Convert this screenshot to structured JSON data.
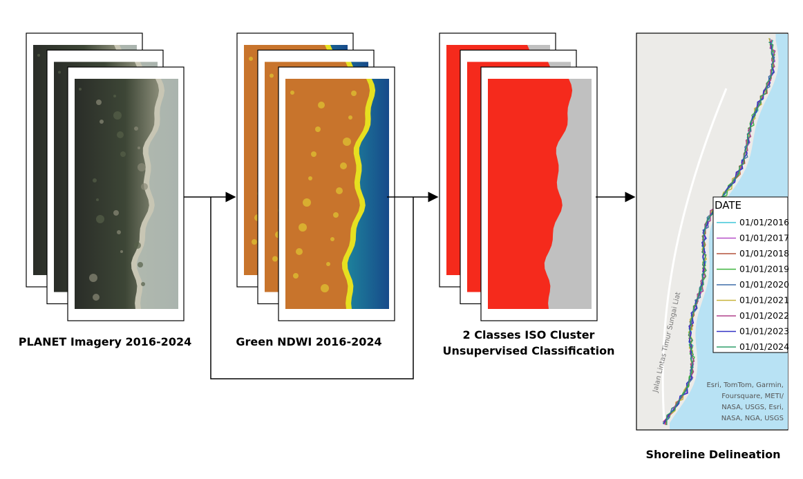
{
  "captions": {
    "planet": "PLANET Imagery 2016-2024",
    "ndwi": "Green NDWI 2016-2024",
    "iso_line1": "2 Classes ISO Cluster",
    "iso_line2": "Unsupervised Classification",
    "shoreline": "Shoreline Delineation"
  },
  "map": {
    "road_label": "Jalan Lintas Timur Sungai Liat",
    "attribution": [
      "Esri, TomTom, Garmin,",
      "Foursquare, METI/",
      "NASA, USGS, Esri,",
      "NASA, NGA, USGS"
    ],
    "legend": {
      "title": "DATE",
      "entries": [
        {
          "label": "01/01/2016",
          "color": "#3fc6d8"
        },
        {
          "label": "01/01/2017",
          "color": "#b54fc8"
        },
        {
          "label": "01/01/2018",
          "color": "#b4503a"
        },
        {
          "label": "01/01/2019",
          "color": "#3cb43c"
        },
        {
          "label": "01/01/2020",
          "color": "#3d6da8"
        },
        {
          "label": "01/01/2021",
          "color": "#c8b43a"
        },
        {
          "label": "01/01/2022",
          "color": "#b0408a"
        },
        {
          "label": "01/01/2023",
          "color": "#3232c4"
        },
        {
          "label": "01/01/2024",
          "color": "#2e9e6a"
        }
      ]
    }
  }
}
